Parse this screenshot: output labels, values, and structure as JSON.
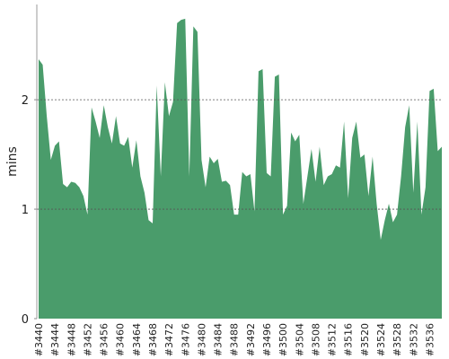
{
  "chart_data": {
    "type": "area",
    "ylabel": "mins",
    "color": "#4a9c6b",
    "categories": [
      "#3440",
      null,
      null,
      null,
      "#3444",
      null,
      null,
      null,
      "#3448",
      null,
      null,
      null,
      "#3452",
      null,
      null,
      null,
      "#3456",
      null,
      null,
      null,
      "#3460",
      null,
      null,
      null,
      "#3464",
      null,
      null,
      null,
      "#3468",
      null,
      null,
      null,
      "#3472",
      null,
      null,
      null,
      "#3476",
      null,
      null,
      null,
      "#3480",
      null,
      null,
      null,
      "#3484",
      null,
      null,
      null,
      "#3488",
      null,
      null,
      null,
      "#3492",
      null,
      null,
      null,
      "#3496",
      null,
      null,
      null,
      "#3500",
      null,
      null,
      null,
      "#3504",
      null,
      null,
      null,
      "#3508",
      null,
      null,
      null,
      "#3512",
      null,
      null,
      null,
      "#3516",
      null,
      null,
      null,
      "#3520",
      null,
      null,
      null,
      "#3524",
      null,
      null,
      null,
      "#3528",
      null,
      null,
      null,
      "#3532",
      null,
      null,
      null,
      "#3536",
      null,
      null,
      null
    ],
    "values": [
      2.37,
      2.32,
      1.85,
      1.45,
      1.58,
      1.62,
      1.23,
      1.2,
      1.25,
      1.24,
      1.2,
      1.12,
      0.95,
      1.93,
      1.8,
      1.65,
      1.95,
      1.75,
      1.6,
      1.85,
      1.6,
      1.58,
      1.66,
      1.38,
      1.63,
      1.3,
      1.15,
      0.9,
      0.87,
      2.13,
      1.3,
      2.16,
      1.85,
      1.98,
      2.7,
      2.73,
      2.74,
      1.3,
      2.67,
      2.62,
      1.45,
      1.2,
      1.48,
      1.42,
      1.46,
      1.25,
      1.26,
      1.22,
      0.95,
      0.95,
      1.34,
      1.3,
      1.32,
      0.98,
      2.26,
      2.28,
      1.33,
      1.3,
      2.21,
      2.23,
      0.95,
      1.03,
      1.7,
      1.62,
      1.68,
      1.05,
      1.3,
      1.55,
      1.25,
      1.57,
      1.22,
      1.3,
      1.32,
      1.4,
      1.38,
      1.8,
      1.1,
      1.65,
      1.8,
      1.47,
      1.5,
      1.12,
      1.48,
      1.05,
      0.72,
      0.9,
      1.05,
      0.88,
      0.95,
      1.3,
      1.75,
      1.95,
      1.15,
      1.8,
      0.95,
      1.2,
      2.08,
      2.1,
      1.53,
      1.57
    ],
    "ylim": [
      0,
      2.87
    ],
    "yticks": [
      0,
      1,
      2
    ],
    "grid": true
  }
}
